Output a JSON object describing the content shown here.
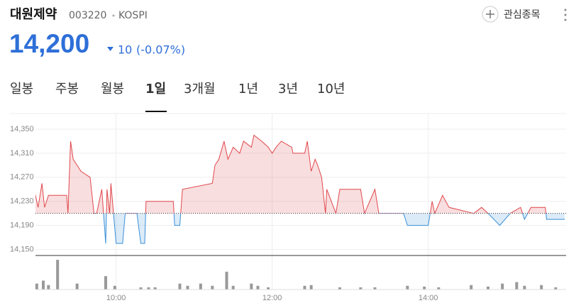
{
  "header": {
    "title": "대원제약",
    "code": "003220",
    "market": "KOSPI",
    "price": "14,200",
    "change": "10",
    "change_pct": "(-0.07%)",
    "watch": "관심종목"
  },
  "tabs": {
    "items": [
      "일봉",
      "주봉",
      "월봉",
      "1일",
      "3개월",
      "1년",
      "3년",
      "10년"
    ],
    "active": 3
  },
  "chart_data": {
    "type": "line",
    "x": [
      537,
      540,
      543,
      545,
      548,
      562,
      563,
      565,
      567,
      570,
      573,
      580,
      583,
      585,
      589,
      592,
      593,
      595,
      596,
      598,
      600,
      605,
      607,
      616,
      619,
      622,
      623,
      644,
      645,
      649,
      651,
      674,
      676,
      679,
      683,
      686,
      690,
      695,
      698,
      704,
      706,
      712,
      717,
      720,
      723,
      727,
      735,
      736,
      745,
      747,
      750,
      753,
      755,
      758,
      761,
      762,
      769,
      772,
      788,
      791,
      799,
      802,
      821,
      824,
      840,
      843,
      845,
      851,
      856,
      875,
      881,
      886,
      895,
      903,
      911,
      914,
      919,
      930,
      931,
      945
    ],
    "series": [
      {
        "values": [
          14250,
          14220,
          14260,
          14220,
          14240,
          14240,
          14210,
          14330,
          14300,
          14290,
          14280,
          14270,
          14210,
          14210,
          14250,
          14160,
          14250,
          14210,
          14260,
          14210,
          14160,
          14160,
          14210,
          14210,
          14160,
          14160,
          14230,
          14230,
          14190,
          14190,
          14250,
          14260,
          14290,
          14300,
          14330,
          14300,
          14320,
          14310,
          14330,
          14320,
          14340,
          14330,
          14320,
          14310,
          14320,
          14330,
          14320,
          14310,
          14310,
          14330,
          14280,
          14300,
          14290,
          14270,
          14210,
          14250,
          14210,
          14250,
          14250,
          14210,
          14250,
          14210,
          14210,
          14190,
          14190,
          14230,
          14210,
          14240,
          14220,
          14210,
          14220,
          14210,
          14190,
          14210,
          14220,
          14200,
          14220,
          14220,
          14200,
          14200
        ],
        "color": "#e0474c",
        "color_below": "#3a8fd8"
      }
    ],
    "previous_close": 14210,
    "xlim": [
      538,
      946
    ],
    "xticks": [
      {
        "value": 600,
        "label": "10:00"
      },
      {
        "value": 720,
        "label": "12:00"
      },
      {
        "value": 840,
        "label": "14:00"
      }
    ],
    "ylim": [
      14140,
      14376
    ],
    "yticks": [
      {
        "value": 14150,
        "label": "14,150"
      },
      {
        "value": 14190,
        "label": "14,190"
      },
      {
        "value": 14230,
        "label": "14,230"
      },
      {
        "value": 14270,
        "label": "14,270"
      },
      {
        "value": 14310,
        "label": "14,310"
      },
      {
        "value": 14350,
        "label": "14,350"
      }
    ],
    "grid": true,
    "volume": {
      "x": [
        539,
        544,
        548,
        555,
        570,
        592,
        599,
        619,
        625,
        630,
        649,
        655,
        665,
        674,
        685,
        690,
        704,
        709,
        717,
        745,
        750,
        772,
        788,
        799,
        824,
        837,
        848,
        873,
        886,
        897,
        908,
        914,
        927,
        938
      ],
      "values": [
        8,
        12,
        6,
        40,
        8,
        18,
        5,
        3,
        3,
        3,
        8,
        5,
        8,
        5,
        24,
        5,
        8,
        5,
        3,
        5,
        6,
        3,
        3,
        3,
        5,
        4,
        3,
        6,
        4,
        8,
        10,
        5,
        6,
        3
      ],
      "color": "#999999",
      "ylim": [
        0,
        42
      ]
    }
  }
}
